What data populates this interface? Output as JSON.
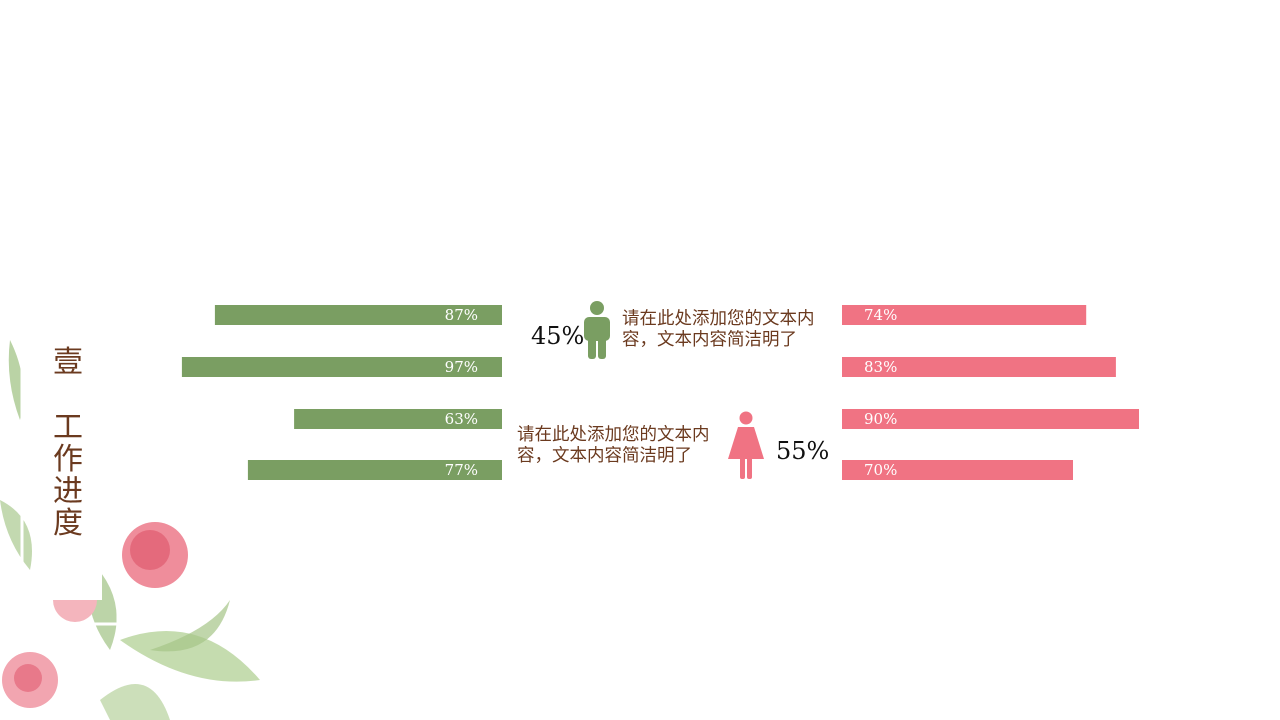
{
  "sidebar": {
    "number": "壹",
    "title": "工作进度"
  },
  "chart_data": [
    {
      "type": "bar",
      "values": [
        87,
        97,
        63,
        77
      ],
      "value_labels": [
        "87%",
        "97%",
        "63%",
        "77%"
      ],
      "color": "#7a9e62"
    },
    {
      "type": "bar",
      "values": [
        74,
        83,
        90,
        70
      ],
      "value_labels": [
        "74%",
        "83%",
        "90%",
        "70%"
      ],
      "color": "#f07383"
    }
  ],
  "male": {
    "percent": "45%",
    "text": "请在此处添加您的文本内容，文本内容简洁明了"
  },
  "female": {
    "percent": "55%",
    "text": "请在此处添加您的文本内容，文本内容简洁明了"
  }
}
